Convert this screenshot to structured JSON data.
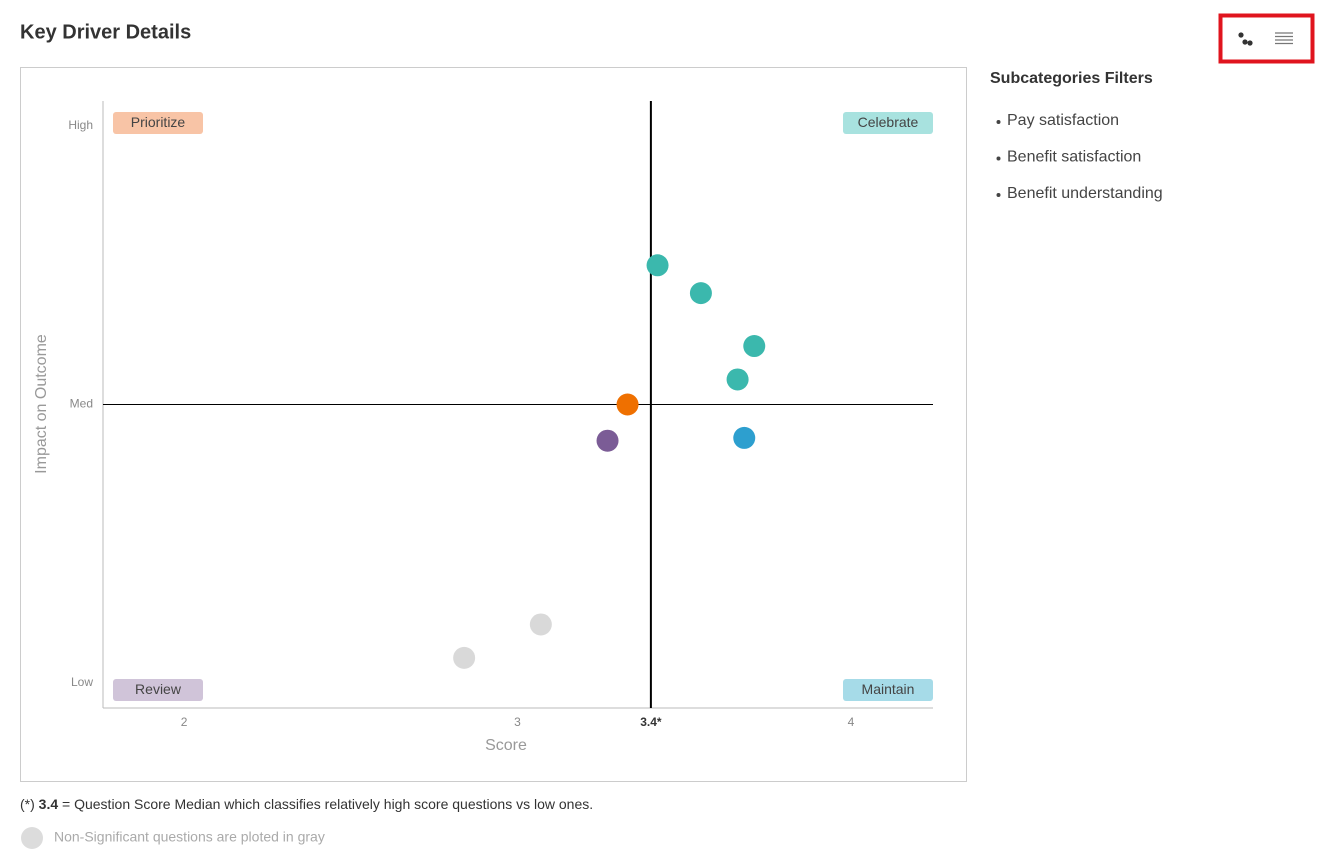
{
  "title": "Key Driver Details",
  "chart_data": {
    "type": "scatter",
    "x": [
      3.42,
      3.55,
      3.71,
      3.66,
      3.33,
      3.27,
      3.68,
      3.07,
      2.84
    ],
    "values": [
      1.5,
      1.4,
      1.21,
      1.09,
      1.0,
      0.87,
      0.88,
      0.21,
      0.09
    ],
    "colors": [
      "#3bb8ad",
      "#3bb8ad",
      "#3bb8ad",
      "#3bb8ad",
      "#ef7000",
      "#7b5c96",
      "#2d9fcf",
      "#d9d9d9",
      "#d9d9d9"
    ],
    "xlim": [
      1.757,
      4.246
    ],
    "ylim": [
      -0.09,
      2.09
    ],
    "xticks": [
      2,
      3,
      {
        "value": 3.4,
        "label": "3.4*"
      },
      4
    ],
    "yticks": [
      {
        "value": 0,
        "label": "Low"
      },
      {
        "value": 1,
        "label": "Med"
      },
      {
        "value": 2,
        "label": "High"
      }
    ],
    "xlabel": "Score",
    "ylabel": "Impact on Outcome",
    "quadrants": [
      {
        "label": "Prioritize",
        "color": "#f8c4a6"
      },
      {
        "label": "Celebrate",
        "color": "#a8e2df"
      },
      {
        "label": "Review",
        "color": "#d0c4d9"
      },
      {
        "label": "Maintain",
        "color": "#a6dbe8"
      }
    ]
  },
  "footnote": {
    "prefix": "(*)",
    "value": "3.4",
    "text": "= Question Score Median which classifies relatively high score questions vs low ones."
  },
  "gray_note": {
    "text": "Non-Significant questions are ploted in gray",
    "color": "#dcdcdc"
  },
  "filters": {
    "title": "Subcategories Filters",
    "items": [
      "Pay satisfaction",
      "Benefit satisfaction",
      "Benefit understanding"
    ]
  }
}
